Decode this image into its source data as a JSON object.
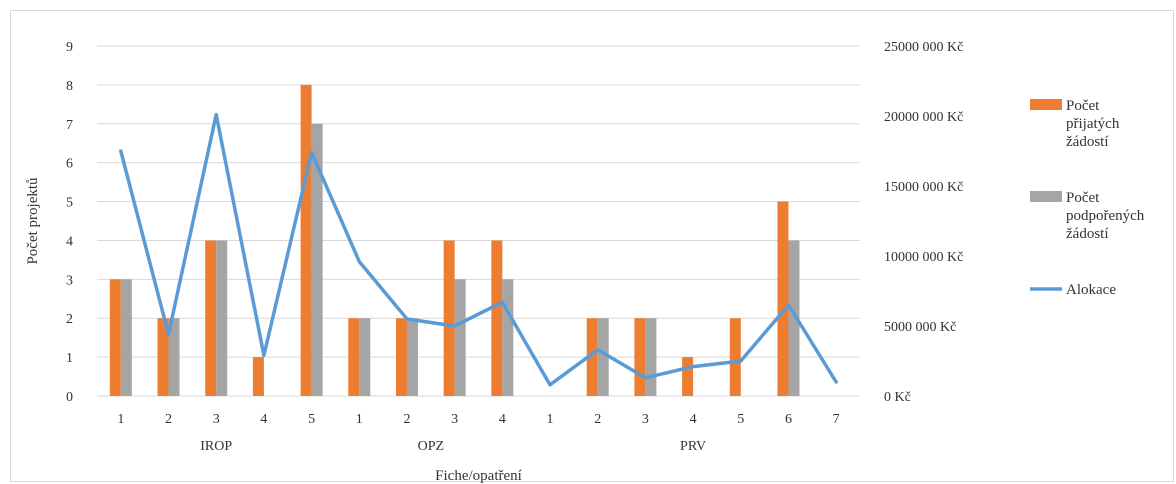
{
  "chart_data": {
    "type": "bar",
    "ylabel": "Počet projektů",
    "xlabel": "Fiche/opatření",
    "ylim": [
      0,
      9
    ],
    "y2lim": [
      0,
      25000000
    ],
    "y_ticks": [
      "0",
      "1",
      "2",
      "3",
      "4",
      "5",
      "6",
      "7",
      "8",
      "9"
    ],
    "y2_ticks": [
      "0 Kč",
      "5000 000 Kč",
      "10000 000 Kč",
      "15000 000 Kč",
      "20000 000 Kč",
      "25000 000 Kč"
    ],
    "grid": true,
    "legend_position": "right",
    "groups": [
      {
        "name": "IROP",
        "span": [
          0,
          4
        ]
      },
      {
        "name": "OPZ",
        "span": [
          5,
          8
        ]
      },
      {
        "name": "PRV",
        "span": [
          9,
          15
        ]
      }
    ],
    "categories": [
      "1",
      "2",
      "3",
      "4",
      "5",
      "1",
      "2",
      "3",
      "4",
      "1",
      "2",
      "3",
      "4",
      "5",
      "6",
      "7"
    ],
    "series": [
      {
        "name": "Počet přijatých žádostí",
        "type": "bar",
        "axis": "left",
        "color": "#ED7D31",
        "values": [
          3,
          2,
          4,
          1,
          8,
          2,
          2,
          4,
          4,
          0,
          2,
          2,
          1,
          2,
          5,
          0
        ]
      },
      {
        "name": "Počet podpořených žádostí",
        "type": "bar",
        "axis": "left",
        "color": "#A5A5A5",
        "values": [
          3,
          2,
          4,
          0,
          7,
          2,
          2,
          3,
          3,
          0,
          2,
          2,
          0,
          0,
          4,
          0
        ]
      },
      {
        "name": "Alokace",
        "type": "line",
        "axis": "right",
        "color": "#5B9BD5",
        "values": [
          17500000,
          4400000,
          20100000,
          2900000,
          17400000,
          9600000,
          5500000,
          5000000,
          6700000,
          800000,
          3300000,
          1300000,
          2100000,
          2500000,
          6500000,
          1000000
        ]
      }
    ],
    "legend": [
      {
        "label_lines": [
          "Počet",
          "přijatých",
          "žádostí"
        ]
      },
      {
        "label_lines": [
          "Počet",
          "podpořených",
          "žádostí"
        ]
      },
      {
        "label_lines": [
          "Alokace"
        ]
      }
    ]
  }
}
